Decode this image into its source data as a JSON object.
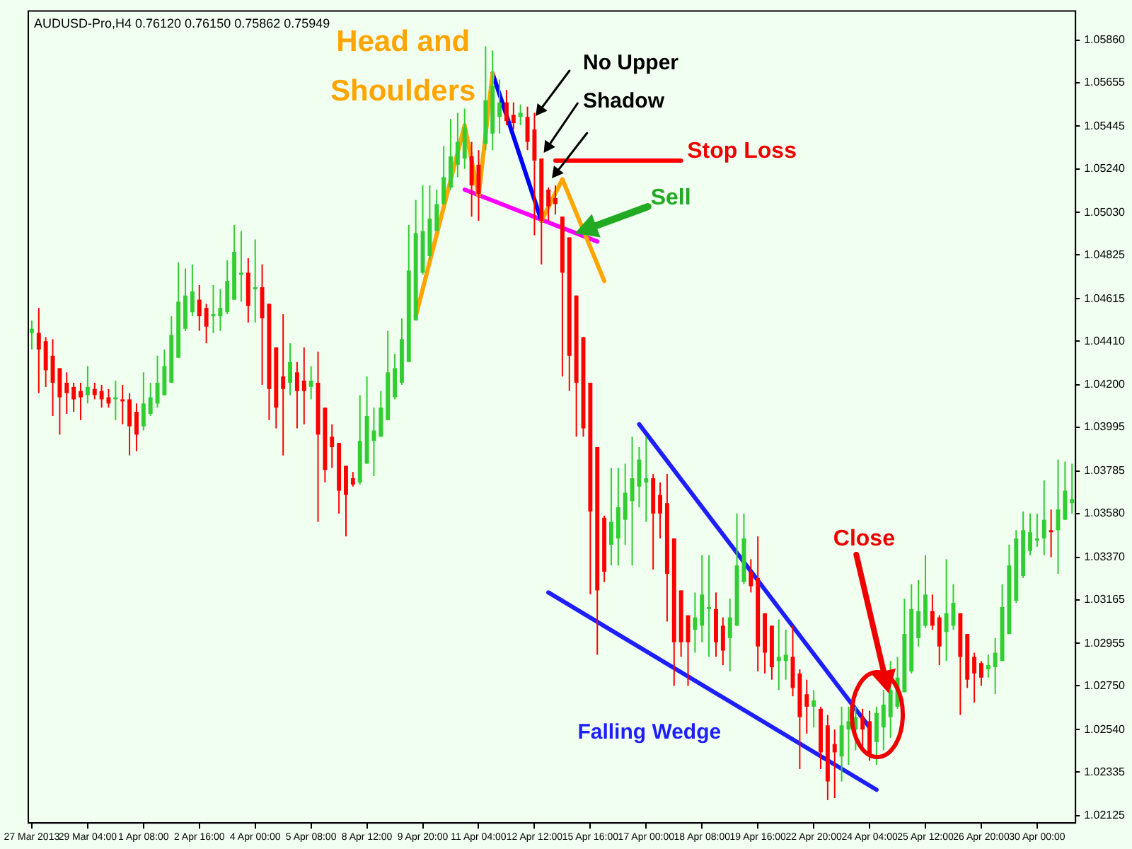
{
  "chart_data": {
    "type": "candlestick",
    "title": "AUDUSD-Pro,H4 0.76120 0.76150 0.75862 0.75949",
    "categories": [
      "27 Mar 2013",
      null,
      null,
      null,
      null,
      null,
      null,
      null,
      "29 Mar 04:00",
      null,
      null,
      null,
      null,
      null,
      null,
      null,
      "1 Apr 08:00",
      null,
      null,
      null,
      null,
      null,
      null,
      null,
      "2 Apr 16:00",
      null,
      null,
      null,
      null,
      null,
      null,
      null,
      "4 Apr 00:00",
      null,
      null,
      null,
      null,
      null,
      null,
      null,
      "5 Apr 08:00",
      null,
      null,
      null,
      null,
      null,
      null,
      null,
      "8 Apr 12:00",
      null,
      null,
      null,
      null,
      null,
      null,
      null,
      "9 Apr 20:00",
      null,
      null,
      null,
      null,
      null,
      null,
      null,
      "11 Apr 04:00",
      null,
      null,
      null,
      null,
      null,
      null,
      null,
      "12 Apr 12:00",
      null,
      null,
      null,
      null,
      null,
      null,
      null,
      "15 Apr 16:00",
      null,
      null,
      null,
      null,
      null,
      null,
      null,
      "17 Apr 00:00",
      null,
      null,
      null,
      null,
      null,
      null,
      null,
      "18 Apr 08:00",
      null,
      null,
      null,
      null,
      null,
      null,
      null,
      "19 Apr 16:00",
      null,
      null,
      null,
      null,
      null,
      null,
      null,
      "22 Apr 20:00",
      null,
      null,
      null,
      null,
      null,
      null,
      null,
      "24 Apr 04:00",
      null,
      null,
      null,
      null,
      null,
      null,
      null,
      "25 Apr 12:00",
      null,
      null,
      null,
      null,
      null,
      null,
      null,
      "26 Apr 20:00",
      null,
      null,
      null,
      null,
      null,
      null,
      null,
      "30 Apr 00:00",
      null,
      null,
      null,
      null,
      null
    ],
    "ohlc": [
      [
        1.0445,
        1.0451,
        1.0437,
        1.0447
      ],
      [
        1.0445,
        1.0457,
        1.0416,
        1.0437
      ],
      [
        1.0441,
        1.0443,
        1.0419,
        1.0427
      ],
      [
        1.0434,
        1.0442,
        1.0405,
        1.0421
      ],
      [
        1.0428,
        1.0428,
        1.0396,
        1.0414
      ],
      [
        1.0421,
        1.0426,
        1.0406,
        1.0416
      ],
      [
        1.0419,
        1.0421,
        1.0407,
        1.0413
      ],
      [
        1.0417,
        1.0421,
        1.0403,
        1.0414
      ],
      [
        1.0415,
        1.0429,
        1.0411,
        1.0419
      ],
      [
        1.0418,
        1.0421,
        1.0413,
        1.0415
      ],
      [
        1.0417,
        1.042,
        1.0409,
        1.0413
      ],
      [
        1.0414,
        1.0418,
        1.0409,
        1.0411
      ],
      [
        1.0413,
        1.0422,
        1.0403,
        1.0414
      ],
      [
        1.0413,
        1.042,
        1.0401,
        1.0412
      ],
      [
        1.0413,
        1.0416,
        1.0386,
        1.04
      ],
      [
        1.0407,
        1.0411,
        1.0388,
        1.0396
      ],
      [
        1.04,
        1.0426,
        1.0398,
        1.0411
      ],
      [
        1.0406,
        1.0421,
        1.0405,
        1.0414
      ],
      [
        1.0411,
        1.0434,
        1.0409,
        1.0421
      ],
      [
        1.0415,
        1.0437,
        1.0415,
        1.0429
      ],
      [
        1.0421,
        1.0453,
        1.0421,
        1.0444
      ],
      [
        1.0433,
        1.0479,
        1.0433,
        1.046
      ],
      [
        1.0447,
        1.0476,
        1.0446,
        1.0463
      ],
      [
        1.0455,
        1.0478,
        1.0453,
        1.0465
      ],
      [
        1.0461,
        1.0468,
        1.0446,
        1.0453
      ],
      [
        1.0457,
        1.0459,
        1.044,
        1.0448
      ],
      [
        1.0453,
        1.0468,
        1.0445,
        1.0454
      ],
      [
        1.0453,
        1.0466,
        1.0446,
        1.0457
      ],
      [
        1.0455,
        1.048,
        1.0454,
        1.047
      ],
      [
        1.0461,
        1.0497,
        1.0461,
        1.0484
      ],
      [
        1.0473,
        1.0494,
        1.046,
        1.0474
      ],
      [
        1.0474,
        1.0481,
        1.045,
        1.0458
      ],
      [
        1.0466,
        1.049,
        1.045,
        1.0467
      ],
      [
        1.0467,
        1.0478,
        1.042,
        1.0452
      ],
      [
        1.0459,
        1.0459,
        1.0403,
        1.0418
      ],
      [
        1.0438,
        1.0438,
        1.0399,
        1.0409
      ],
      [
        1.0424,
        1.0454,
        1.0386,
        1.0418
      ],
      [
        1.0421,
        1.044,
        1.0415,
        1.0431
      ],
      [
        1.0426,
        1.0431,
        1.0399,
        1.0417
      ],
      [
        1.0422,
        1.0438,
        1.0401,
        1.0417
      ],
      [
        1.0419,
        1.0429,
        1.0413,
        1.0422
      ],
      [
        1.0421,
        1.0436,
        1.0354,
        1.0396
      ],
      [
        1.0409,
        1.0409,
        1.0373,
        1.0379
      ],
      [
        1.0395,
        1.0401,
        1.038,
        1.039
      ],
      [
        1.0392,
        1.0392,
        1.0358,
        1.0369
      ],
      [
        1.0381,
        1.0381,
        1.0347,
        1.0367
      ],
      [
        1.0375,
        1.0378,
        1.0371,
        1.0372
      ],
      [
        1.0373,
        1.0415,
        1.0372,
        1.0393
      ],
      [
        1.0382,
        1.0424,
        1.0382,
        1.0405
      ],
      [
        1.0393,
        1.0409,
        1.0376,
        1.0398
      ],
      [
        1.0395,
        1.0417,
        1.0395,
        1.0409
      ],
      [
        1.0403,
        1.0446,
        1.0403,
        1.0426
      ],
      [
        1.0414,
        1.0435,
        1.0413,
        1.0428
      ],
      [
        1.0421,
        1.0452,
        1.042,
        1.0442
      ],
      [
        1.0431,
        1.0497,
        1.0431,
        1.0475
      ],
      [
        1.0451,
        1.0509,
        1.0451,
        1.0493
      ],
      [
        1.0474,
        1.0516,
        1.0473,
        1.0494
      ],
      [
        1.0482,
        1.0516,
        1.048,
        1.05
      ],
      [
        1.0494,
        1.0514,
        1.0494,
        1.0507
      ],
      [
        1.0507,
        1.0535,
        1.0507,
        1.052
      ],
      [
        1.0515,
        1.0548,
        1.0514,
        1.053
      ],
      [
        1.0526,
        1.0551,
        1.052,
        1.0537
      ],
      [
        1.0529,
        1.0553,
        1.0524,
        1.0544
      ],
      [
        1.053,
        1.0537,
        1.0501,
        1.0516
      ],
      [
        1.0526,
        1.0533,
        1.0499,
        1.0512
      ],
      [
        1.0536,
        1.0583,
        1.0533,
        1.0557
      ],
      [
        1.0541,
        1.0581,
        1.0533,
        1.0564
      ],
      [
        1.0549,
        1.0567,
        1.0541,
        1.0556
      ],
      [
        1.0556,
        1.0562,
        1.0545,
        1.0547
      ],
      [
        1.055,
        1.0556,
        1.0543,
        1.0546
      ],
      [
        1.0549,
        1.0555,
        1.0545,
        1.0551
      ],
      [
        1.0549,
        1.0554,
        1.0533,
        1.0537
      ],
      [
        1.0543,
        1.0551,
        1.0492,
        1.0528
      ],
      [
        1.0529,
        1.0529,
        1.0478,
        1.0499
      ],
      [
        1.0514,
        1.0515,
        1.0499,
        1.0506
      ],
      [
        1.051,
        1.0516,
        1.0502,
        1.0507
      ],
      [
        1.0501,
        1.0501,
        1.0424,
        1.0474
      ],
      [
        1.0491,
        1.0491,
        1.0417,
        1.0434
      ],
      [
        1.0463,
        1.0463,
        1.0395,
        1.0421
      ],
      [
        1.0443,
        1.0443,
        1.0395,
        1.0399
      ],
      [
        1.0421,
        1.0421,
        1.0319,
        1.0359
      ],
      [
        1.039,
        1.039,
        1.029,
        1.0321
      ],
      [
        1.0356,
        1.0357,
        1.0325,
        1.033
      ],
      [
        1.0343,
        1.038,
        1.0333,
        1.0354
      ],
      [
        1.0346,
        1.038,
        1.0333,
        1.0361
      ],
      [
        1.0355,
        1.0382,
        1.0343,
        1.0368
      ],
      [
        1.0364,
        1.0395,
        1.0333,
        1.0375
      ],
      [
        1.0371,
        1.039,
        1.0361,
        1.0384
      ],
      [
        1.0373,
        1.0395,
        1.0354,
        1.0375
      ],
      [
        1.0375,
        1.0377,
        1.0331,
        1.0358
      ],
      [
        1.0367,
        1.0373,
        1.0346,
        1.0358
      ],
      [
        1.0363,
        1.0377,
        1.0306,
        1.0329
      ],
      [
        1.0346,
        1.0346,
        1.0275,
        1.0296
      ],
      [
        1.0321,
        1.0321,
        1.0289,
        1.0296
      ],
      [
        1.0309,
        1.0309,
        1.0275,
        1.0296
      ],
      [
        1.0302,
        1.032,
        1.0291,
        1.0308
      ],
      [
        1.0304,
        1.0338,
        1.0296,
        1.0319
      ],
      [
        1.0312,
        1.0338,
        1.0289,
        1.0313
      ],
      [
        1.0312,
        1.032,
        1.0289,
        1.0296
      ],
      [
        1.0304,
        1.0308,
        1.0285,
        1.0292
      ],
      [
        1.0298,
        1.0317,
        1.0282,
        1.0308
      ],
      [
        1.0304,
        1.0358,
        1.0304,
        1.0333
      ],
      [
        1.0325,
        1.0358,
        1.0324,
        1.0346
      ],
      [
        1.033,
        1.0336,
        1.032,
        1.0323
      ],
      [
        1.0327,
        1.0347,
        1.0282,
        1.0294
      ],
      [
        1.031,
        1.031,
        1.0281,
        1.0291
      ],
      [
        1.0304,
        1.0304,
        1.0278,
        1.0284
      ],
      [
        1.0287,
        1.0307,
        1.0273,
        1.0289
      ],
      [
        1.0287,
        1.0302,
        1.0278,
        1.029
      ],
      [
        1.0289,
        1.0304,
        1.027,
        1.0274
      ],
      [
        1.0281,
        1.0283,
        1.0235,
        1.026
      ],
      [
        1.0271,
        1.0278,
        1.0252,
        1.0265
      ],
      [
        1.0265,
        1.0273,
        1.0255,
        1.0268
      ],
      [
        1.0264,
        1.0265,
        1.0235,
        1.0243
      ],
      [
        1.0256,
        1.0261,
        1.022,
        1.0229
      ],
      [
        1.0247,
        1.0254,
        1.0221,
        1.0243
      ],
      [
        1.0241,
        1.0265,
        1.0229,
        1.0256
      ],
      [
        1.0254,
        1.0265,
        1.0237,
        1.0258
      ],
      [
        1.0254,
        1.0265,
        1.0244,
        1.026
      ],
      [
        1.026,
        1.0264,
        1.0244,
        1.0254
      ],
      [
        1.0258,
        1.0263,
        1.0239,
        1.0241
      ],
      [
        1.0248,
        1.0265,
        1.0237,
        1.0262
      ],
      [
        1.0255,
        1.0273,
        1.0244,
        1.0266
      ],
      [
        1.026,
        1.0287,
        1.025,
        1.0273
      ],
      [
        1.0265,
        1.0289,
        1.0264,
        1.0279
      ],
      [
        1.0272,
        1.0317,
        1.0272,
        1.03
      ],
      [
        1.0282,
        1.0324,
        1.0281,
        1.0312
      ],
      [
        1.0298,
        1.0326,
        1.0294,
        1.0311
      ],
      [
        1.0304,
        1.0338,
        1.0303,
        1.0319
      ],
      [
        1.0311,
        1.0319,
        1.0302,
        1.0304
      ],
      [
        1.0308,
        1.0309,
        1.0285,
        1.0294
      ],
      [
        1.0301,
        1.0336,
        1.0287,
        1.031
      ],
      [
        1.0304,
        1.0324,
        1.0302,
        1.0315
      ],
      [
        1.031,
        1.031,
        1.0261,
        1.0289
      ],
      [
        1.03,
        1.03,
        1.0274,
        1.0278
      ],
      [
        1.0289,
        1.0291,
        1.0267,
        1.0281
      ],
      [
        1.0286,
        1.0287,
        1.0275,
        1.0279
      ],
      [
        1.0283,
        1.029,
        1.0279,
        1.0285
      ],
      [
        1.0284,
        1.0298,
        1.0271,
        1.0291
      ],
      [
        1.0287,
        1.0324,
        1.0287,
        1.0313
      ],
      [
        1.03,
        1.0343,
        1.03,
        1.0333
      ],
      [
        1.0316,
        1.035,
        1.0315,
        1.0346
      ],
      [
        1.0328,
        1.0359,
        1.0327,
        1.035
      ],
      [
        1.034,
        1.0358,
        1.0338,
        1.0349
      ],
      [
        1.0345,
        1.0358,
        1.0342,
        1.0346
      ],
      [
        1.0346,
        1.0374,
        1.0338,
        1.0355
      ],
      [
        1.035,
        1.036,
        1.0337,
        1.0349
      ],
      [
        1.035,
        1.0384,
        1.0329,
        1.036
      ],
      [
        1.0355,
        1.0383,
        1.0355,
        1.0369
      ],
      [
        1.0363,
        1.0382,
        1.0358,
        1.0365
      ]
    ],
    "colors": [
      "#32cd32",
      "#ff0000",
      "#ff0000",
      "#ff0000",
      "#ff0000",
      "#ff0000",
      "#ff0000",
      "#ff0000",
      "#32cd32",
      "#ff0000",
      "#ff0000",
      "#ff0000",
      "#32cd32",
      "#ff0000",
      "#ff0000",
      "#ff0000",
      "#32cd32",
      "#32cd32",
      "#32cd32",
      "#32cd32",
      "#32cd32",
      "#32cd32",
      "#32cd32",
      "#32cd32",
      "#ff0000",
      "#ff0000",
      "#32cd32",
      "#32cd32",
      "#32cd32",
      "#32cd32",
      "#32cd32",
      "#ff0000",
      "#32cd32",
      "#ff0000",
      "#ff0000",
      "#ff0000",
      "#ff0000",
      "#32cd32",
      "#ff0000",
      "#ff0000",
      "#32cd32",
      "#ff0000",
      "#ff0000",
      "#ff0000",
      "#ff0000",
      "#ff0000",
      "#ff0000",
      "#32cd32",
      "#32cd32",
      "#32cd32",
      "#32cd32",
      "#32cd32",
      "#32cd32",
      "#32cd32",
      "#32cd32",
      "#32cd32",
      "#32cd32",
      "#32cd32",
      "#32cd32",
      "#32cd32",
      "#32cd32",
      "#32cd32",
      "#32cd32",
      "#ff0000",
      "#ff0000",
      "#32cd32",
      "#32cd32",
      "#32cd32",
      "#ff0000",
      "#ff0000",
      "#32cd32",
      "#ff0000",
      "#ff0000",
      "#ff0000",
      "#ff0000",
      "#ff0000",
      "#ff0000",
      "#ff0000",
      "#ff0000",
      "#ff0000",
      "#ff0000",
      "#ff0000",
      "#ff0000",
      "#32cd32",
      "#32cd32",
      "#32cd32",
      "#32cd32",
      "#32cd32",
      "#32cd32",
      "#ff0000",
      "#ff0000",
      "#ff0000",
      "#ff0000",
      "#ff0000",
      "#ff0000",
      "#32cd32",
      "#32cd32",
      "#32cd32",
      "#ff0000",
      "#ff0000",
      "#32cd32",
      "#32cd32",
      "#32cd32",
      "#ff0000",
      "#ff0000",
      "#ff0000",
      "#ff0000",
      "#32cd32",
      "#32cd32",
      "#ff0000",
      "#ff0000",
      "#ff0000",
      "#32cd32",
      "#ff0000",
      "#ff0000",
      "#ff0000",
      "#32cd32",
      "#32cd32",
      "#32cd32",
      "#ff0000",
      "#ff0000",
      "#32cd32",
      "#32cd32",
      "#32cd32",
      "#32cd32",
      "#32cd32",
      "#32cd32",
      "#32cd32",
      "#32cd32",
      "#ff0000",
      "#ff0000",
      "#32cd32",
      "#32cd32",
      "#ff0000",
      "#ff0000",
      "#ff0000",
      "#ff0000",
      "#32cd32",
      "#32cd32",
      "#32cd32",
      "#32cd32",
      "#32cd32",
      "#32cd32",
      "#32cd32",
      "#32cd32",
      "#32cd32",
      "#ff0000",
      "#32cd32",
      "#32cd32",
      "#32cd32"
    ],
    "series": [
      {
        "type": "line",
        "color": "#ffa500",
        "values": [
          null,
          null,
          null,
          null,
          null,
          null,
          null,
          null,
          null,
          null,
          null,
          null,
          null,
          null,
          null,
          null,
          null,
          null,
          null,
          null,
          null,
          null,
          null,
          null,
          null,
          null,
          null,
          null,
          null,
          null,
          null,
          null,
          null,
          null,
          null,
          null,
          null,
          null,
          null,
          null,
          null,
          null,
          null,
          null,
          null,
          null,
          null,
          null,
          null,
          null,
          null,
          null,
          null,
          null,
          null,
          1.0453,
          null,
          null,
          null,
          null,
          null,
          null,
          1.0545,
          null,
          1.0511,
          null,
          1.057,
          null,
          null,
          null,
          null,
          null,
          null,
          null,
          null,
          null,
          null,
          null,
          null,
          null,
          null,
          null,
          null,
          null,
          null,
          null,
          null,
          null,
          null,
          null,
          null,
          null,
          null,
          null,
          null,
          null,
          null,
          null,
          null,
          null,
          null,
          null,
          null,
          null,
          null,
          null,
          null,
          null,
          null,
          null,
          null,
          null,
          null,
          null,
          null,
          null,
          null,
          null,
          null,
          null,
          null,
          null,
          null,
          null,
          null,
          null,
          null,
          null,
          null,
          null,
          null,
          null,
          null,
          null,
          null,
          null,
          null,
          null,
          null,
          null,
          null,
          null,
          null,
          null,
          null,
          null,
          null,
          null,
          null,
          null
        ]
      },
      {
        "type": "line",
        "color": "#ffa500",
        "values": [
          null,
          null,
          null,
          null,
          null,
          null,
          null,
          null,
          null,
          null,
          null,
          null,
          null,
          null,
          null,
          null,
          null,
          null,
          null,
          null,
          null,
          null,
          null,
          null,
          null,
          null,
          null,
          null,
          null,
          null,
          null,
          null,
          null,
          null,
          null,
          null,
          null,
          null,
          null,
          null,
          null,
          null,
          null,
          null,
          null,
          null,
          null,
          null,
          null,
          null,
          null,
          null,
          null,
          null,
          null,
          null,
          null,
          null,
          null,
          null,
          null,
          null,
          null,
          null,
          null,
          null,
          null,
          null,
          null,
          null,
          null,
          null,
          null,
          1.0499,
          null,
          null,
          1.0519,
          null,
          null,
          null,
          null,
          null,
          1.047,
          null,
          null,
          null,
          null,
          null,
          null,
          null,
          null,
          null,
          null,
          null,
          null,
          null,
          null,
          null,
          null,
          null,
          null,
          null,
          null,
          null,
          null,
          null,
          null,
          null,
          null,
          null,
          null,
          null,
          null,
          null,
          null,
          null,
          null,
          null,
          null,
          null,
          null,
          null,
          null,
          null,
          null,
          null,
          null,
          null,
          null,
          null,
          null,
          null,
          null,
          null,
          null,
          null,
          null,
          null,
          null,
          null,
          null,
          null,
          null,
          null,
          null,
          null,
          null,
          null,
          null,
          null
        ]
      },
      {
        "type": "line",
        "color": "#0000ff",
        "values": [
          null,
          null,
          null,
          null,
          null,
          null,
          null,
          null,
          null,
          null,
          null,
          null,
          null,
          null,
          null,
          null,
          null,
          null,
          null,
          null,
          null,
          null,
          null,
          null,
          null,
          null,
          null,
          null,
          null,
          null,
          null,
          null,
          null,
          null,
          null,
          null,
          null,
          null,
          null,
          null,
          null,
          null,
          null,
          null,
          null,
          null,
          null,
          null,
          null,
          null,
          null,
          null,
          null,
          null,
          null,
          null,
          null,
          null,
          null,
          null,
          null,
          null,
          null,
          null,
          null,
          null,
          1.057,
          null,
          null,
          null,
          null,
          null,
          null,
          1.0499,
          null,
          null,
          null,
          null,
          null,
          null,
          null,
          null,
          null,
          null,
          null,
          null,
          null,
          null,
          null,
          null,
          null,
          null,
          null,
          null,
          null,
          null,
          null,
          null,
          null,
          null,
          null,
          null,
          null,
          null,
          null,
          null,
          null,
          null,
          null,
          null,
          null,
          null,
          null,
          null,
          null,
          null,
          null,
          null,
          null,
          null,
          null,
          null,
          null,
          null,
          null,
          null,
          null,
          null,
          null,
          null,
          null,
          null,
          null,
          null,
          null,
          null,
          null,
          null,
          null,
          null,
          null,
          null,
          null,
          null,
          null,
          null,
          null,
          null,
          null,
          null
        ]
      },
      {
        "type": "line",
        "color": "#ff00ff",
        "values": [
          null,
          null,
          null,
          null,
          null,
          null,
          null,
          null,
          null,
          null,
          null,
          null,
          null,
          null,
          null,
          null,
          null,
          null,
          null,
          null,
          null,
          null,
          null,
          null,
          null,
          null,
          null,
          null,
          null,
          null,
          null,
          null,
          null,
          null,
          null,
          null,
          null,
          null,
          null,
          null,
          null,
          null,
          null,
          null,
          null,
          null,
          null,
          null,
          null,
          null,
          null,
          null,
          null,
          null,
          null,
          null,
          null,
          null,
          null,
          null,
          null,
          null,
          1.0514,
          null,
          null,
          null,
          null,
          null,
          null,
          null,
          null,
          null,
          null,
          null,
          null,
          null,
          null,
          null,
          null,
          null,
          null,
          1.0489,
          null,
          null,
          null,
          null,
          null,
          null,
          null,
          null,
          null,
          null,
          null,
          null,
          null,
          null,
          null,
          null,
          null,
          null,
          null,
          null,
          null,
          null,
          null,
          null,
          null,
          null,
          null,
          null,
          null,
          null,
          null,
          null,
          null,
          null,
          null,
          null,
          null,
          null,
          null,
          null,
          null,
          null,
          null,
          null,
          null,
          null,
          null,
          null,
          null,
          null,
          null,
          null,
          null,
          null,
          null,
          null,
          null,
          null,
          null,
          null,
          null,
          null,
          null,
          null,
          null,
          null,
          null,
          null
        ]
      },
      {
        "type": "line",
        "color": "#ff0000",
        "values": [
          null,
          null,
          null,
          null,
          null,
          null,
          null,
          null,
          null,
          null,
          null,
          null,
          null,
          null,
          null,
          null,
          null,
          null,
          null,
          null,
          null,
          null,
          null,
          null,
          null,
          null,
          null,
          null,
          null,
          null,
          null,
          null,
          null,
          null,
          null,
          null,
          null,
          null,
          null,
          null,
          null,
          null,
          null,
          null,
          null,
          null,
          null,
          null,
          null,
          null,
          null,
          null,
          null,
          null,
          null,
          null,
          null,
          null,
          null,
          null,
          null,
          null,
          null,
          null,
          null,
          null,
          null,
          null,
          null,
          null,
          null,
          null,
          null,
          null,
          null,
          1.0528,
          null,
          null,
          null,
          null,
          null,
          null,
          null,
          null,
          null,
          null,
          null,
          null,
          null,
          null,
          null,
          null,
          null,
          1.0528,
          null,
          null,
          null,
          null,
          null,
          null,
          null,
          null,
          null,
          null,
          null,
          null,
          null,
          null,
          null,
          null,
          null,
          null,
          null,
          null,
          null,
          null,
          null,
          null,
          null,
          null,
          null,
          null,
          null,
          null,
          null,
          null,
          null,
          null,
          null,
          null,
          null,
          null,
          null,
          null,
          null,
          null,
          null,
          null,
          null,
          null,
          null,
          null,
          null,
          null,
          null,
          null,
          null,
          null,
          null,
          null
        ]
      },
      {
        "type": "line",
        "color": "#1e1eff",
        "values": [
          null,
          null,
          null,
          null,
          null,
          null,
          null,
          null,
          null,
          null,
          null,
          null,
          null,
          null,
          null,
          null,
          null,
          null,
          null,
          null,
          null,
          null,
          null,
          null,
          null,
          null,
          null,
          null,
          null,
          null,
          null,
          null,
          null,
          null,
          null,
          null,
          null,
          null,
          null,
          null,
          null,
          null,
          null,
          null,
          null,
          null,
          null,
          null,
          null,
          null,
          null,
          null,
          null,
          null,
          null,
          null,
          null,
          null,
          null,
          null,
          null,
          null,
          null,
          null,
          null,
          null,
          null,
          null,
          null,
          null,
          null,
          null,
          null,
          null,
          null,
          null,
          null,
          null,
          null,
          null,
          null,
          null,
          null,
          null,
          null,
          null,
          null,
          1.0401,
          null,
          null,
          null,
          null,
          null,
          null,
          null,
          null,
          null,
          null,
          null,
          null,
          null,
          null,
          null,
          null,
          null,
          null,
          null,
          null,
          null,
          null,
          null,
          null,
          null,
          null,
          null,
          null,
          null,
          null,
          null,
          null,
          1.0255,
          null,
          null,
          null,
          null,
          null,
          null,
          null,
          null,
          null,
          null,
          null,
          null,
          null,
          null,
          null,
          null,
          null,
          null,
          null,
          null,
          null,
          null,
          null,
          null,
          null,
          null,
          null,
          null,
          null
        ]
      },
      {
        "type": "line",
        "color": "#1e1eff",
        "values": [
          null,
          null,
          null,
          null,
          null,
          null,
          null,
          null,
          null,
          null,
          null,
          null,
          null,
          null,
          null,
          null,
          null,
          null,
          null,
          null,
          null,
          null,
          null,
          null,
          null,
          null,
          null,
          null,
          null,
          null,
          null,
          null,
          null,
          null,
          null,
          null,
          null,
          null,
          null,
          null,
          null,
          null,
          null,
          null,
          null,
          null,
          null,
          null,
          null,
          null,
          null,
          null,
          null,
          null,
          null,
          null,
          null,
          null,
          null,
          null,
          null,
          null,
          null,
          null,
          null,
          null,
          null,
          null,
          null,
          null,
          null,
          null,
          null,
          null,
          1.032,
          null,
          null,
          null,
          null,
          null,
          null,
          null,
          null,
          null,
          null,
          null,
          null,
          null,
          null,
          null,
          null,
          null,
          null,
          null,
          null,
          null,
          null,
          null,
          null,
          null,
          null,
          null,
          null,
          null,
          null,
          null,
          null,
          null,
          null,
          null,
          null,
          null,
          null,
          null,
          null,
          null,
          null,
          null,
          null,
          null,
          null,
          1.0225,
          null,
          null,
          null,
          null,
          null,
          null,
          null,
          null,
          null,
          null,
          null,
          null,
          null,
          null,
          null,
          null,
          null,
          null,
          null,
          null,
          null,
          null,
          null,
          null,
          null,
          null,
          null,
          null
        ]
      }
    ],
    "ylim": [
      1.0209,
      1.06
    ],
    "yticks": [
      {
        "value": 1.0586,
        "label": "1.05860"
      },
      1.05655,
      1.05445,
      {
        "value": 1.0524,
        "label": "1.05240"
      },
      {
        "value": 1.0503,
        "label": "1.05030"
      },
      1.04825,
      1.04615,
      {
        "value": 1.0441,
        "label": "1.04410"
      },
      {
        "value": 1.042,
        "label": "1.04200"
      },
      1.03995,
      1.03785,
      {
        "value": 1.0358,
        "label": "1.03580"
      },
      {
        "value": 1.0337,
        "label": "1.03370"
      },
      1.03165,
      1.02955,
      {
        "value": 1.0275,
        "label": "1.02750"
      },
      {
        "value": 1.0254,
        "label": "1.02540"
      },
      1.02335,
      1.02125
    ],
    "grid": false,
    "annotations": [
      "Head and Shoulders",
      "No Upper Shadow",
      "Stop Loss",
      "Sell",
      "Close",
      "Falling Wedge"
    ]
  }
}
